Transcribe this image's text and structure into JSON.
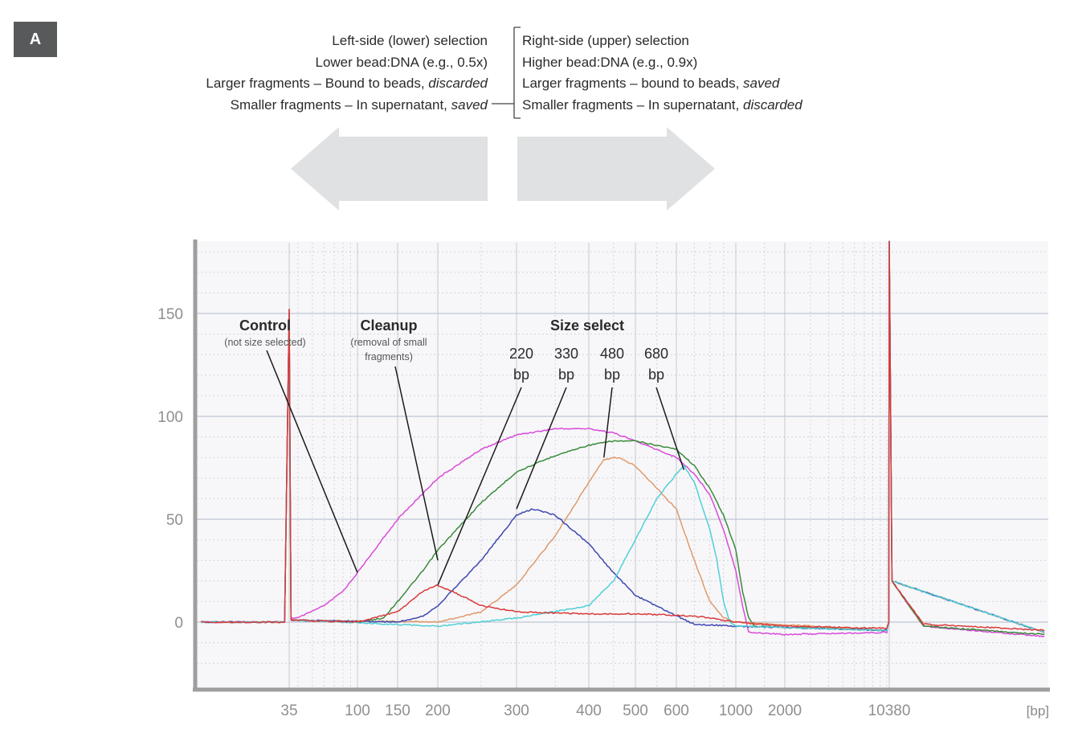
{
  "panel_label": "A",
  "left_selection": {
    "title": "Left-side (lower) selection",
    "ratio": "Lower bead:DNA (e.g., 0.5x)",
    "larger_prefix": "Larger fragments – Bound to beads, ",
    "larger_fate": "discarded",
    "smaller_prefix": "Smaller fragments – In supernatant, ",
    "smaller_fate": "saved"
  },
  "right_selection": {
    "title": "Right-side (upper) selection",
    "ratio": "Higher bead:DNA (e.g., 0.9x)",
    "larger_prefix": "Larger fragments – bound to beads, ",
    "larger_fate": "saved",
    "smaller_prefix": "Smaller fragments – In supernatant, ",
    "smaller_fate": "discarded"
  },
  "chart_data": {
    "type": "line",
    "xlabel": "[bp]",
    "ylim": [
      -30,
      185
    ],
    "x_scale": "log (electropherogram, bp)",
    "grid": true,
    "ytick_labels": [
      "150",
      "100",
      "50",
      "0"
    ],
    "yticks": [
      150,
      100,
      50,
      0
    ],
    "xtick_labels": [
      "35",
      "100",
      "150",
      "200",
      "300",
      "400",
      "500",
      "600",
      "1000",
      "2000",
      "10380"
    ],
    "xticks": [
      35,
      100,
      150,
      200,
      300,
      400,
      500,
      600,
      1000,
      2000,
      10380
    ],
    "markers": [
      {
        "name": "lower-marker",
        "bp": 35,
        "peak": 152
      },
      {
        "name": "upper-marker",
        "bp": 10380,
        "peak": 185
      }
    ],
    "annotations": [
      {
        "key": "control",
        "title": "Control",
        "subtitle": "(not size selected)",
        "target_bp": 100,
        "target_y": 24
      },
      {
        "key": "cleanup",
        "title": "Cleanup",
        "subtitle_1": "(removal of small",
        "subtitle_2": "fragments)",
        "target_bp": 200,
        "target_y": 30
      },
      {
        "key": "size_select",
        "title": "Size select"
      },
      {
        "key": "s220",
        "value": "220",
        "unit": "bp",
        "target_bp": 200,
        "target_y": 18
      },
      {
        "key": "s330",
        "value": "330",
        "unit": "bp",
        "target_bp": 300,
        "target_y": 55
      },
      {
        "key": "s480",
        "value": "480",
        "unit": "bp",
        "target_bp": 430,
        "target_y": 80
      },
      {
        "key": "s680",
        "value": "680",
        "unit": "bp",
        "target_bp": 640,
        "target_y": 74
      }
    ],
    "series": [
      {
        "color": "#d94bd9",
        "points": [
          [
            20,
            0
          ],
          [
            34,
            0
          ],
          [
            35,
            152
          ],
          [
            36,
            2
          ],
          [
            40,
            2
          ],
          [
            60,
            8
          ],
          [
            80,
            15
          ],
          [
            100,
            24
          ],
          [
            150,
            50
          ],
          [
            200,
            70
          ],
          [
            250,
            84
          ],
          [
            300,
            91
          ],
          [
            350,
            94
          ],
          [
            400,
            94
          ],
          [
            450,
            92
          ],
          [
            500,
            88
          ],
          [
            600,
            80
          ],
          [
            700,
            72
          ],
          [
            800,
            62
          ],
          [
            900,
            45
          ],
          [
            1000,
            25
          ],
          [
            1100,
            8
          ],
          [
            1200,
            -5
          ],
          [
            2000,
            -6
          ],
          [
            10000,
            -5
          ],
          [
            10300,
            0
          ],
          [
            10380,
            185
          ],
          [
            10500,
            20
          ],
          [
            12000,
            -2
          ],
          [
            20000,
            -7
          ]
        ]
      },
      {
        "color": "#3a8a3a",
        "points": [
          [
            20,
            0
          ],
          [
            34,
            0
          ],
          [
            35,
            150
          ],
          [
            36,
            1
          ],
          [
            100,
            0
          ],
          [
            130,
            2
          ],
          [
            150,
            10
          ],
          [
            180,
            25
          ],
          [
            200,
            35
          ],
          [
            250,
            58
          ],
          [
            300,
            73
          ],
          [
            350,
            81
          ],
          [
            400,
            86
          ],
          [
            450,
            88
          ],
          [
            500,
            88
          ],
          [
            600,
            84
          ],
          [
            700,
            76
          ],
          [
            800,
            65
          ],
          [
            900,
            52
          ],
          [
            1000,
            35
          ],
          [
            1100,
            15
          ],
          [
            1200,
            2
          ],
          [
            1300,
            -2
          ],
          [
            10000,
            -4
          ],
          [
            10300,
            0
          ],
          [
            10380,
            185
          ],
          [
            10500,
            20
          ],
          [
            12000,
            -2
          ],
          [
            20000,
            -6
          ]
        ]
      },
      {
        "color": "#e09a6a",
        "points": [
          [
            20,
            0
          ],
          [
            34,
            0
          ],
          [
            35,
            150
          ],
          [
            36,
            1
          ],
          [
            200,
            0
          ],
          [
            250,
            5
          ],
          [
            300,
            18
          ],
          [
            350,
            42
          ],
          [
            400,
            68
          ],
          [
            430,
            79
          ],
          [
            460,
            80
          ],
          [
            500,
            76
          ],
          [
            600,
            55
          ],
          [
            700,
            30
          ],
          [
            800,
            10
          ],
          [
            900,
            2
          ],
          [
            1000,
            0
          ],
          [
            10000,
            -4
          ],
          [
            10300,
            0
          ],
          [
            10380,
            185
          ],
          [
            10500,
            20
          ],
          [
            20000,
            -5
          ]
        ]
      },
      {
        "color": "#3e47b0",
        "points": [
          [
            20,
            0
          ],
          [
            34,
            0
          ],
          [
            35,
            150
          ],
          [
            36,
            1
          ],
          [
            150,
            0
          ],
          [
            180,
            3
          ],
          [
            200,
            8
          ],
          [
            250,
            30
          ],
          [
            300,
            52
          ],
          [
            320,
            55
          ],
          [
            350,
            52
          ],
          [
            400,
            38
          ],
          [
            450,
            24
          ],
          [
            500,
            13
          ],
          [
            600,
            3
          ],
          [
            700,
            -1
          ],
          [
            1000,
            -2
          ],
          [
            10000,
            -4
          ],
          [
            10300,
            0
          ],
          [
            10380,
            185
          ],
          [
            10500,
            20
          ],
          [
            20000,
            -5
          ]
        ]
      },
      {
        "color": "#4fd0d6",
        "points": [
          [
            20,
            0
          ],
          [
            34,
            0
          ],
          [
            35,
            150
          ],
          [
            36,
            1
          ],
          [
            200,
            -2
          ],
          [
            300,
            2
          ],
          [
            400,
            8
          ],
          [
            450,
            20
          ],
          [
            500,
            40
          ],
          [
            550,
            60
          ],
          [
            600,
            72
          ],
          [
            640,
            76
          ],
          [
            700,
            68
          ],
          [
            800,
            45
          ],
          [
            850,
            30
          ],
          [
            900,
            10
          ],
          [
            950,
            0
          ],
          [
            1000,
            -2
          ],
          [
            10000,
            -4
          ],
          [
            10300,
            0
          ],
          [
            10380,
            185
          ],
          [
            10500,
            20
          ],
          [
            20000,
            -5
          ]
        ]
      },
      {
        "color": "#d93a3a",
        "points": [
          [
            20,
            0
          ],
          [
            34,
            0
          ],
          [
            35,
            152
          ],
          [
            36,
            1
          ],
          [
            100,
            0
          ],
          [
            150,
            5
          ],
          [
            180,
            15
          ],
          [
            200,
            18
          ],
          [
            220,
            14
          ],
          [
            250,
            8
          ],
          [
            300,
            5
          ],
          [
            400,
            4
          ],
          [
            500,
            4
          ],
          [
            700,
            3
          ],
          [
            1000,
            0
          ],
          [
            2000,
            -2
          ],
          [
            10000,
            -3
          ],
          [
            10300,
            0
          ],
          [
            10380,
            185
          ],
          [
            10500,
            20
          ],
          [
            12000,
            -1
          ],
          [
            20000,
            -4
          ]
        ]
      }
    ]
  }
}
